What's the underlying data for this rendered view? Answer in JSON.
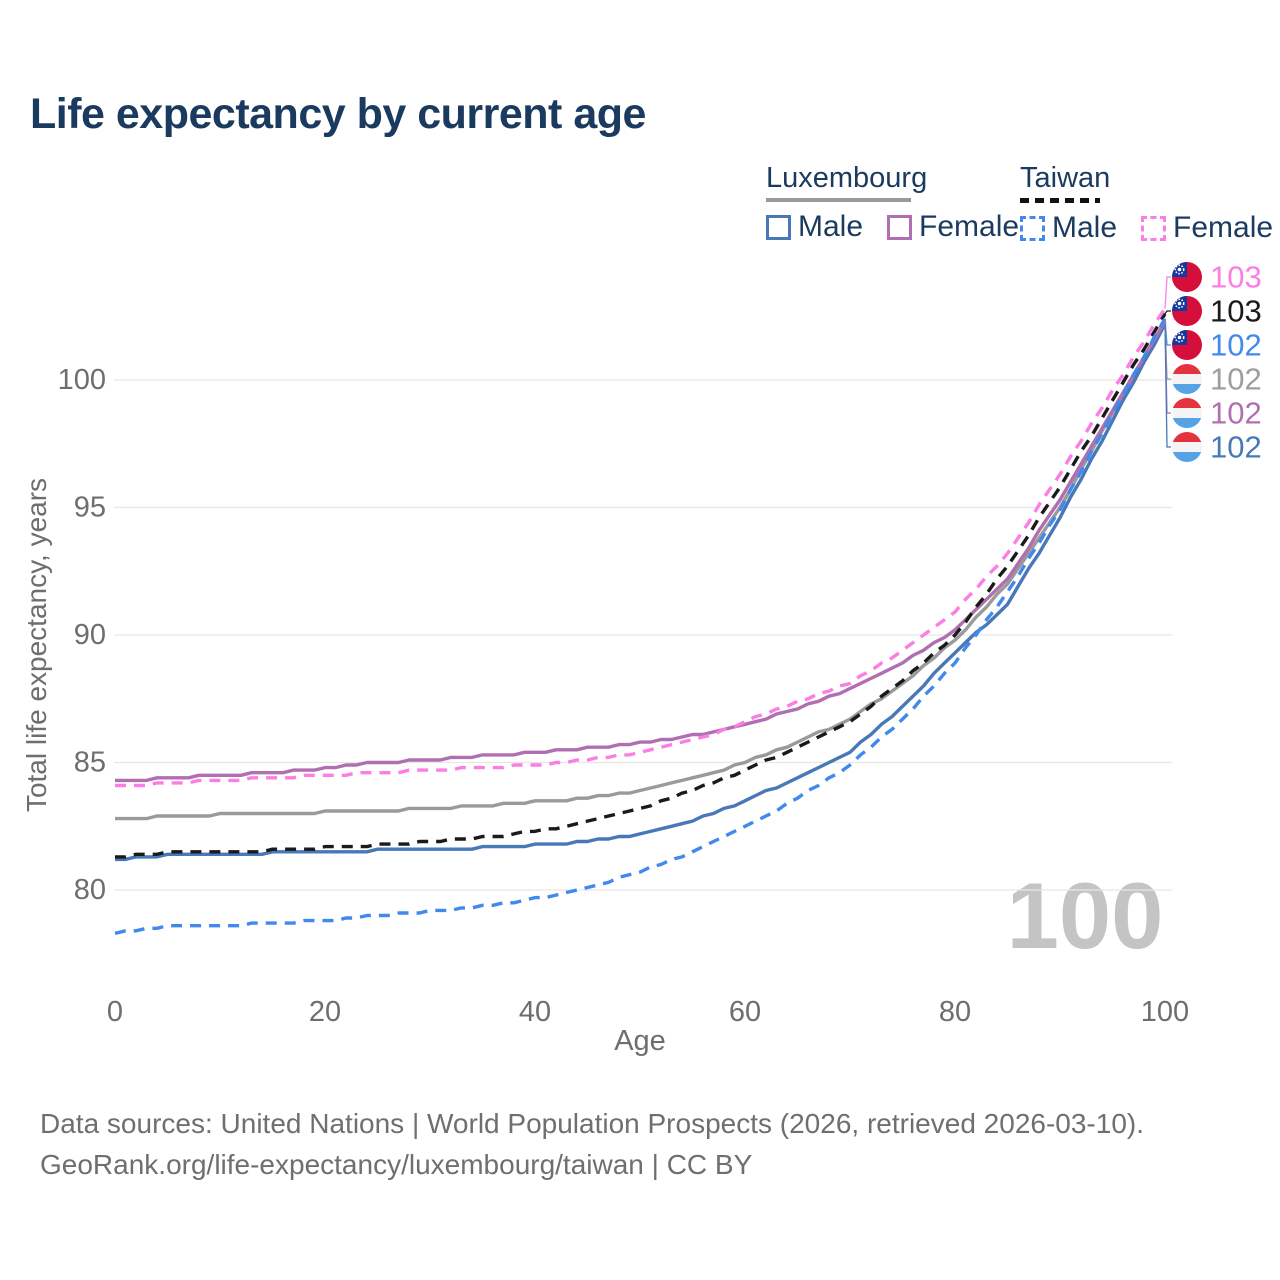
{
  "title": "Life expectancy by current age",
  "legend": {
    "groups": [
      {
        "name": "Luxembourg",
        "line_style": "solid",
        "items": [
          {
            "label": "Male",
            "series_key": "luxembourg-male"
          },
          {
            "label": "Female",
            "series_key": "luxembourg-female"
          }
        ]
      },
      {
        "name": "Taiwan",
        "line_style": "dashed",
        "items": [
          {
            "label": "Male",
            "series_key": "taiwan-male"
          },
          {
            "label": "Female",
            "series_key": "taiwan-female"
          }
        ]
      }
    ]
  },
  "chart_data": {
    "type": "line",
    "title": "Life expectancy by current age",
    "xlabel": "Age",
    "ylabel": "Total life expectancy, years",
    "xlim": [
      0,
      100
    ],
    "ylim": [
      77.5,
      103.5
    ],
    "x_ticks": [
      0,
      20,
      40,
      60,
      80,
      100
    ],
    "y_ticks": [
      80,
      85,
      90,
      95,
      100
    ],
    "grid": "horizontal",
    "legend_position": "top-right",
    "x": [
      0,
      5,
      10,
      15,
      20,
      25,
      30,
      35,
      40,
      45,
      50,
      55,
      60,
      65,
      70,
      75,
      80,
      85,
      90,
      95,
      100
    ],
    "series": [
      {
        "key": "luxembourg",
        "name": "Luxembourg (both sexes)",
        "color": "#9a9a9a",
        "label_color": "#9e9e9e",
        "dashed": false,
        "flag": "luxembourg",
        "end_label": "102",
        "values": [
          82.75,
          82.9,
          82.95,
          83.0,
          83.05,
          83.1,
          83.2,
          83.3,
          83.45,
          83.6,
          83.9,
          84.35,
          85.0,
          85.8,
          86.7,
          88.1,
          89.8,
          92.0,
          95.0,
          98.7,
          102.3
        ]
      },
      {
        "key": "luxembourg-male",
        "name": "Luxembourg Male",
        "color": "#4878b8",
        "label_color": "#4878b8",
        "dashed": false,
        "flag": "luxembourg",
        "end_label": "102",
        "values": [
          81.2,
          81.35,
          81.4,
          81.45,
          81.5,
          81.55,
          81.6,
          81.65,
          81.75,
          81.9,
          82.2,
          82.7,
          83.5,
          84.4,
          85.4,
          87.2,
          89.3,
          91.2,
          94.6,
          98.4,
          102.2
        ]
      },
      {
        "key": "luxembourg-female",
        "name": "Luxembourg Female",
        "color": "#b06fb0",
        "label_color": "#b06fb0",
        "dashed": false,
        "flag": "luxembourg",
        "end_label": "102",
        "values": [
          84.25,
          84.4,
          84.5,
          84.6,
          84.75,
          85.0,
          85.1,
          85.25,
          85.4,
          85.55,
          85.75,
          86.05,
          86.5,
          87.1,
          87.9,
          88.9,
          90.2,
          92.2,
          95.3,
          98.8,
          102.25
        ]
      },
      {
        "key": "taiwan",
        "name": "Taiwan (both sexes)",
        "color": "#1a1a1a",
        "label_color": "#1a1a1a",
        "dashed": true,
        "flag": "taiwan",
        "end_label": "103",
        "values": [
          81.3,
          81.45,
          81.5,
          81.55,
          81.65,
          81.75,
          81.9,
          82.05,
          82.3,
          82.65,
          83.2,
          83.9,
          84.7,
          85.6,
          86.6,
          88.2,
          90.0,
          92.7,
          95.8,
          99.2,
          102.6
        ]
      },
      {
        "key": "taiwan-male",
        "name": "Taiwan Male",
        "color": "#4189ec",
        "label_color": "#4189ec",
        "dashed": true,
        "flag": "taiwan",
        "end_label": "102",
        "values": [
          78.3,
          78.55,
          78.6,
          78.7,
          78.8,
          79.0,
          79.15,
          79.35,
          79.65,
          80.1,
          80.7,
          81.5,
          82.45,
          83.6,
          84.9,
          86.7,
          88.9,
          91.7,
          94.9,
          98.7,
          102.4
        ]
      },
      {
        "key": "taiwan-female",
        "name": "Taiwan Female",
        "color": "#fc7ee4",
        "label_color": "#fc7ee4",
        "dashed": true,
        "flag": "taiwan",
        "end_label": "103",
        "values": [
          84.05,
          84.2,
          84.3,
          84.4,
          84.5,
          84.6,
          84.7,
          84.8,
          84.9,
          85.1,
          85.4,
          85.85,
          86.6,
          87.4,
          88.1,
          89.4,
          90.9,
          93.2,
          96.3,
          99.6,
          102.8
        ]
      }
    ],
    "annotations": {
      "watermark": "100"
    }
  },
  "colors": {
    "title_text": "#1b3a5f",
    "axis_text": "#6e6e6e",
    "gridline": "#e7e7e7",
    "watermark": "#c4c4c4",
    "footer_text": "#6f6f6f"
  },
  "footer": {
    "line1": "Data sources: United Nations | World Population Prospects (2026, retrieved 2026-03-10).",
    "line2": "GeoRank.org/life-expectancy/luxembourg/taiwan | CC BY"
  }
}
